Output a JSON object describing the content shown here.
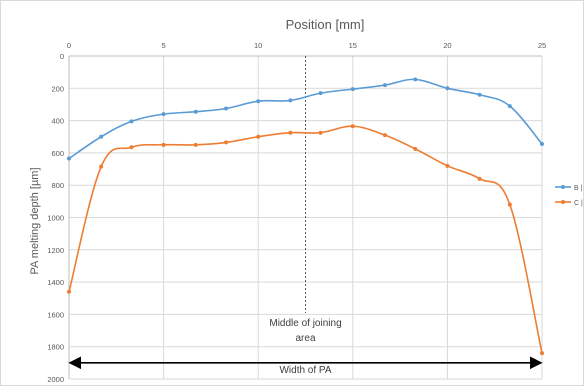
{
  "chart_data": {
    "type": "line",
    "x_axis_title": "Position [mm]",
    "y_axis_title": "PA melting depth [µm]",
    "xlim": [
      0,
      25
    ],
    "ylim": [
      0,
      2000
    ],
    "y_reversed": true,
    "x_ticks": [
      "0",
      "5",
      "10",
      "15",
      "20",
      "25"
    ],
    "y_ticks": [
      "0",
      "200",
      "400",
      "600",
      "800",
      "1000",
      "1200",
      "1400",
      "1600",
      "1800",
      "2000"
    ],
    "grid": "both",
    "legend_position": "right",
    "series": [
      {
        "name": "B |",
        "color": "#5b9bd5",
        "points": [
          [
            0,
            635
          ],
          [
            1.7,
            500
          ],
          [
            3.3,
            405
          ],
          [
            5,
            360
          ],
          [
            6.7,
            345
          ],
          [
            8.3,
            325
          ],
          [
            10,
            280
          ],
          [
            11.7,
            275
          ],
          [
            13.3,
            230
          ],
          [
            15,
            205
          ],
          [
            16.7,
            180
          ],
          [
            18.3,
            145
          ],
          [
            20,
            200
          ],
          [
            21.7,
            240
          ],
          [
            23.3,
            310
          ],
          [
            25,
            545
          ]
        ]
      },
      {
        "name": "C |",
        "color": "#ed7d31",
        "points": [
          [
            0,
            1460
          ],
          [
            1.7,
            685
          ],
          [
            3.3,
            565
          ],
          [
            5,
            550
          ],
          [
            6.7,
            550
          ],
          [
            8.3,
            535
          ],
          [
            10,
            500
          ],
          [
            11.7,
            475
          ],
          [
            13.3,
            475
          ],
          [
            15,
            435
          ],
          [
            16.7,
            490
          ],
          [
            18.3,
            575
          ],
          [
            20,
            680
          ],
          [
            21.7,
            760
          ],
          [
            23.3,
            920
          ],
          [
            25,
            1840
          ]
        ]
      }
    ],
    "annotations": {
      "middle_line_x": 12.5,
      "middle_label_line1": "Middle of joining",
      "middle_label_line2": "area",
      "width_label": "Width of PA",
      "width_arrow_y": 1900
    }
  }
}
